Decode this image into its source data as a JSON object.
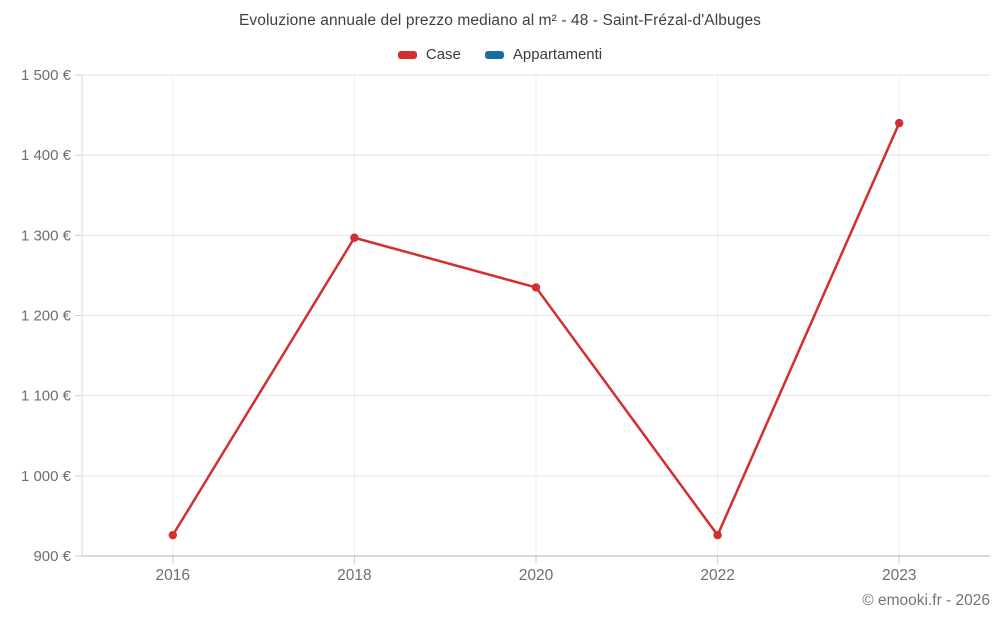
{
  "chart_data": {
    "type": "line",
    "title": "Evoluzione annuale del prezzo mediano al m² - 48 - Saint-Frézal-d'Albuges",
    "categories": [
      "2016",
      "2018",
      "2020",
      "2022",
      "2023"
    ],
    "series": [
      {
        "name": "Case",
        "color": "#d32f2f",
        "values": [
          926,
          1297,
          1235,
          926,
          1440
        ]
      },
      {
        "name": "Appartamenti",
        "color": "#1a6da4",
        "values": [
          null,
          null,
          null,
          null,
          null
        ]
      }
    ],
    "xlabel": "",
    "ylabel": "",
    "ylim": [
      900,
      1500
    ],
    "ytick_step": 100,
    "ytick_labels": [
      "900 €",
      "1 000 €",
      "1 100 €",
      "1 200 €",
      "1 300 €",
      "1 400 €",
      "1 500 €"
    ],
    "grid": true,
    "legend_position": "top"
  },
  "colors": {
    "grid_horizontal": "#e4e4e4",
    "grid_vertical": "#efefef",
    "axis_line": "#b5b5b5",
    "tick": "#cfcfcf",
    "plot_border": "#d9d9d9",
    "axis_label": "#6e6e6e"
  },
  "footer": {
    "copyright": "© emooki.fr - 2026"
  }
}
